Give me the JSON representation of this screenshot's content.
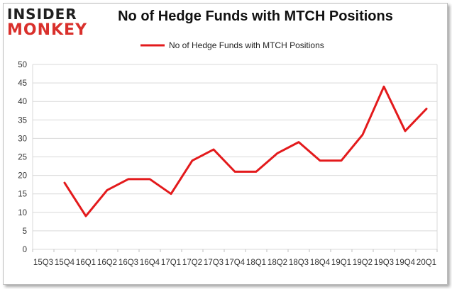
{
  "logo": {
    "line1": "INSIDER",
    "line2": "MONKEY"
  },
  "chart_data": {
    "type": "line",
    "title": "No of Hedge Funds with MTCH Positions",
    "xlabel": "",
    "ylabel": "",
    "categories": [
      "15Q3",
      "15Q4",
      "16Q1",
      "16Q2",
      "16Q3",
      "16Q4",
      "17Q1",
      "17Q2",
      "17Q3",
      "17Q4",
      "18Q1",
      "18Q2",
      "18Q3",
      "18Q4",
      "19Q1",
      "19Q2",
      "19Q3",
      "19Q4",
      "20Q1"
    ],
    "series": [
      {
        "name": "No of Hedge Funds with MTCH Positions",
        "color": "#e31a1c",
        "values": [
          null,
          18,
          9,
          16,
          19,
          19,
          15,
          24,
          27,
          21,
          21,
          26,
          29,
          24,
          24,
          31,
          44,
          32,
          38
        ]
      }
    ],
    "ylim": [
      0,
      50
    ],
    "yticks": [
      0,
      5,
      10,
      15,
      20,
      25,
      30,
      35,
      40,
      45,
      50
    ],
    "grid": true,
    "legend_position": "top-center"
  }
}
